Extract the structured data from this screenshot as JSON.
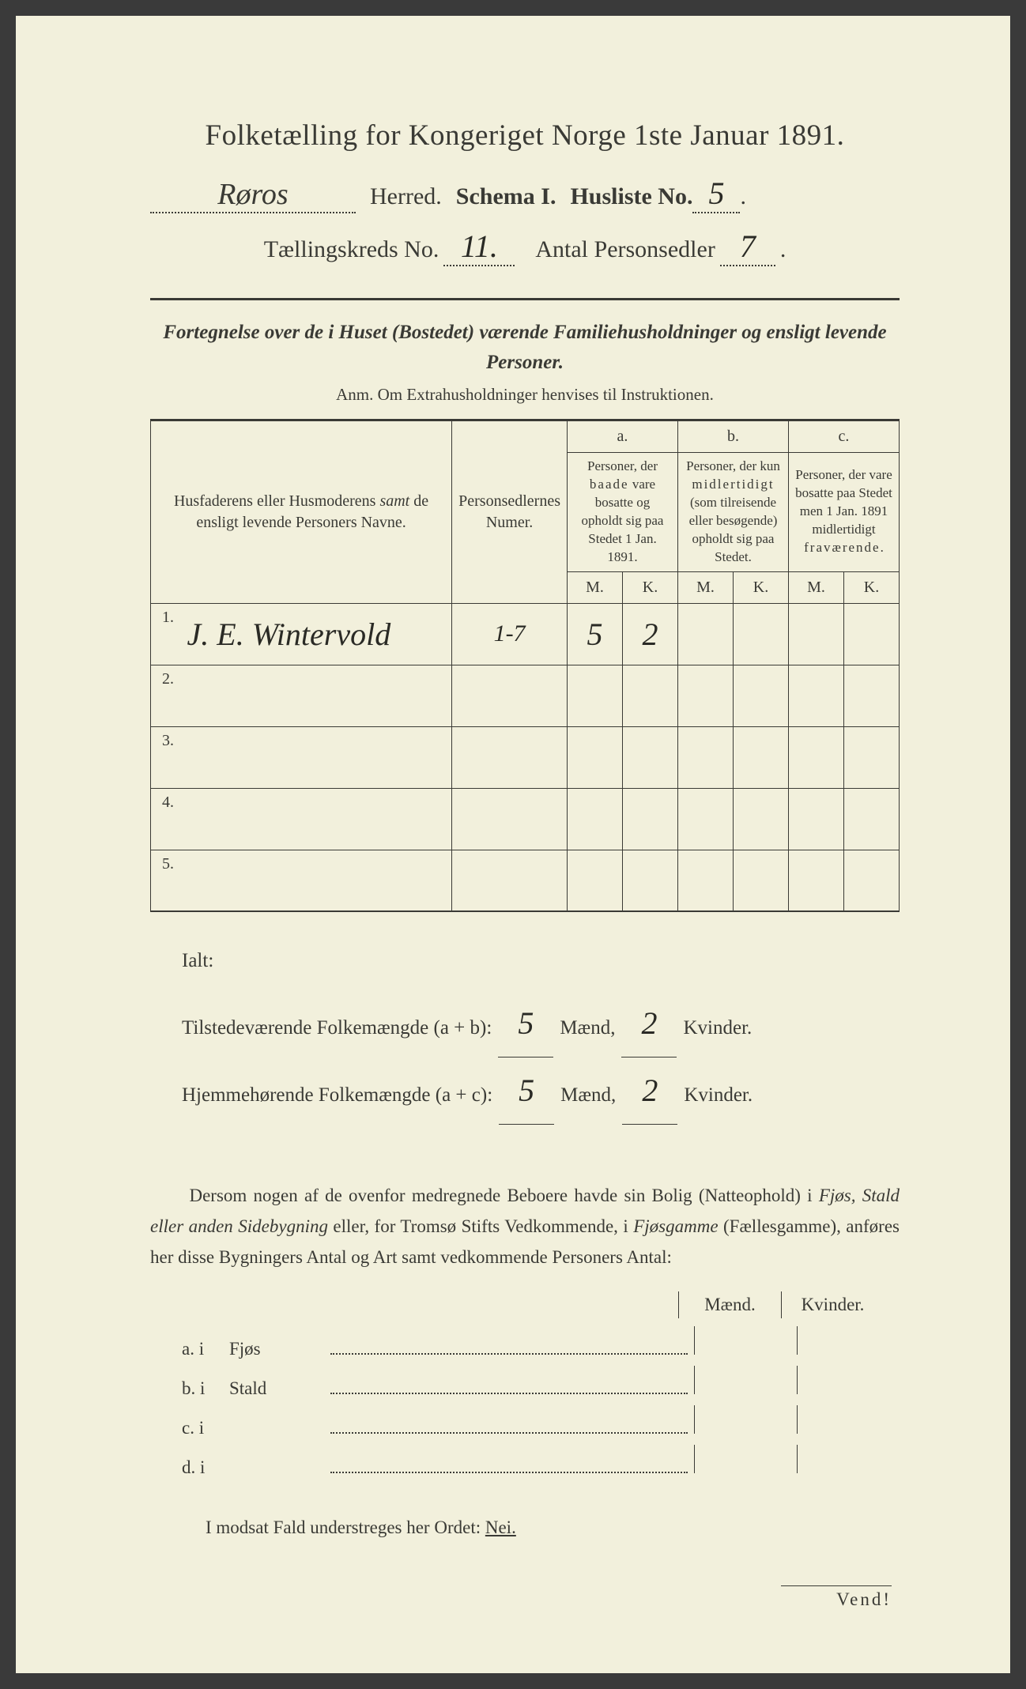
{
  "title": "Folketælling for Kongeriget Norge 1ste Januar 1891.",
  "header": {
    "herred_value": "Røros",
    "herred_label": "Herred.",
    "schema_label": "Schema I.",
    "husliste_label": "Husliste No.",
    "husliste_value": "5",
    "kreds_label": "Tællingskreds No.",
    "kreds_value": "11.",
    "antal_label": "Antal Personsedler",
    "antal_value": "7"
  },
  "subtitle": "Fortegnelse over de i Huset (Bostedet) værende Familiehusholdninger og ensligt levende Personer.",
  "anm": "Anm.   Om Extrahusholdninger henvises til Instruktionen.",
  "table": {
    "col_name": "Husfaderens eller Husmoderens samt de ensligt levende Personers Navne.",
    "col_num": "Personsedlernes Numer.",
    "col_a_top": "a.",
    "col_a": "Personer, der baade vare bosatte og opholdt sig paa Stedet 1 Jan. 1891.",
    "col_b_top": "b.",
    "col_b": "Personer, der kun midlertidigt (som tilreisende eller besøgende) opholdt sig paa Stedet.",
    "col_c_top": "c.",
    "col_c": "Personer, der vare bosatte paa Stedet men 1 Jan. 1891 midlertidigt fraværende.",
    "m": "M.",
    "k": "K.",
    "rows": [
      {
        "n": "1.",
        "name": "J. E. Wintervold",
        "num": "1-7",
        "am": "5",
        "ak": "2",
        "bm": "",
        "bk": "",
        "cm": "",
        "ck": ""
      },
      {
        "n": "2.",
        "name": "",
        "num": "",
        "am": "",
        "ak": "",
        "bm": "",
        "bk": "",
        "cm": "",
        "ck": ""
      },
      {
        "n": "3.",
        "name": "",
        "num": "",
        "am": "",
        "ak": "",
        "bm": "",
        "bk": "",
        "cm": "",
        "ck": ""
      },
      {
        "n": "4.",
        "name": "",
        "num": "",
        "am": "",
        "ak": "",
        "bm": "",
        "bk": "",
        "cm": "",
        "ck": ""
      },
      {
        "n": "5.",
        "name": "",
        "num": "",
        "am": "",
        "ak": "",
        "bm": "",
        "bk": "",
        "cm": "",
        "ck": ""
      }
    ]
  },
  "ialt": {
    "label": "Ialt:",
    "line1_label": "Tilstedeværende  Folkemængde (a + b):",
    "line1_m": "5",
    "line1_k": "2",
    "line2_label": "Hjemmehørende  Folkemængde (a + c):",
    "line2_m": "5",
    "line2_k": "2",
    "maend": "Mænd,",
    "kvinder": "Kvinder."
  },
  "para": "Dersom nogen af de ovenfor medregnede Beboere havde sin Bolig (Natteophold) i Fjøs, Stald eller anden Sidebygning eller, for Tromsø Stifts Vedkommende, i Fjøsgamme (Fællesgamme), anføres her disse Bygningers Antal og Art samt vedkommende Personers Antal:",
  "buildings": {
    "maend": "Mænd.",
    "kvinder": "Kvinder.",
    "rows": [
      {
        "label": "a.  i",
        "type": "Fjøs"
      },
      {
        "label": "b.  i",
        "type": "Stald"
      },
      {
        "label": "c.  i",
        "type": ""
      },
      {
        "label": "d.  i",
        "type": ""
      }
    ]
  },
  "modsat": "I modsat Fald understreges her Ordet: ",
  "nei": "Nei.",
  "vend": "Vend!",
  "colors": {
    "background": "#f2f0dc",
    "text": "#3a3a35",
    "hand": "#2a2a25"
  }
}
